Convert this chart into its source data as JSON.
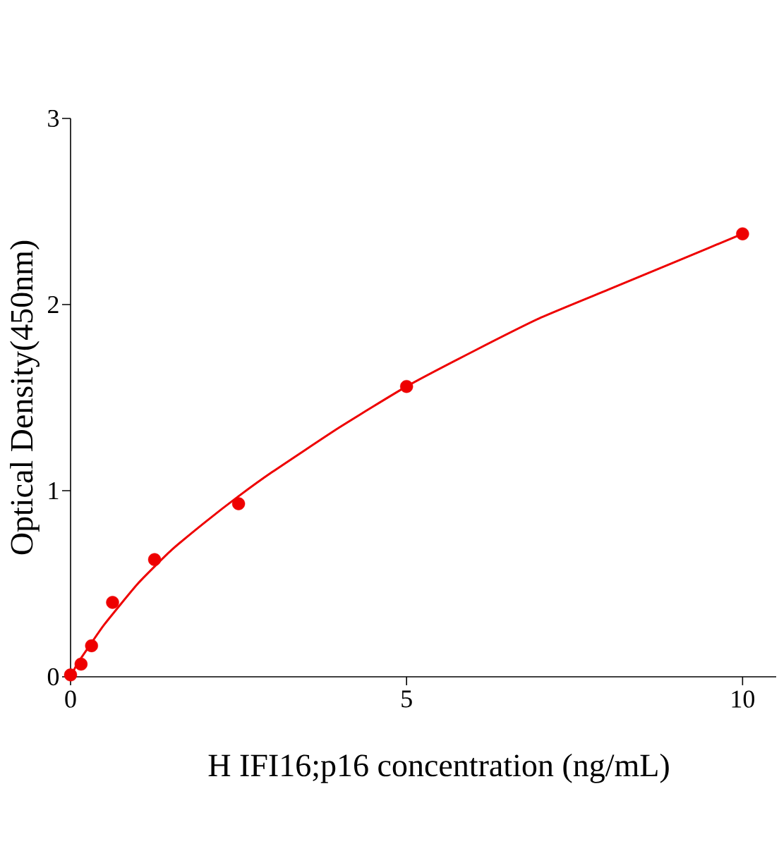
{
  "chart_data": {
    "type": "scatter",
    "xlabel": "H IFI16;p16 concentration (ng/mL)",
    "ylabel": "Optical Density(450nm)",
    "xlim": [
      0,
      10.5
    ],
    "ylim": [
      0,
      3
    ],
    "xticks": [
      0,
      5,
      10
    ],
    "yticks": [
      0,
      1,
      2,
      3
    ],
    "grid": false,
    "series": [
      {
        "marker": "circle",
        "color": "#ee0000",
        "x": [
          0,
          0.156,
          0.3125,
          0.625,
          1.25,
          2.5,
          5,
          10
        ],
        "values": [
          0.01,
          0.068,
          0.167,
          0.4,
          0.63,
          0.93,
          1.56,
          2.38
        ]
      },
      {
        "type": "line",
        "marker": "none",
        "line_style": "solid",
        "color": "#ee0000",
        "x": [
          0,
          0.1,
          0.25,
          0.5,
          1,
          1.5,
          2,
          2.5,
          3,
          4,
          5,
          6,
          7,
          8,
          9,
          10
        ],
        "values": [
          0.0,
          0.07,
          0.15,
          0.28,
          0.5,
          0.68,
          0.83,
          0.97,
          1.1,
          1.34,
          1.56,
          1.75,
          1.93,
          2.08,
          2.23,
          2.38
        ]
      }
    ]
  }
}
